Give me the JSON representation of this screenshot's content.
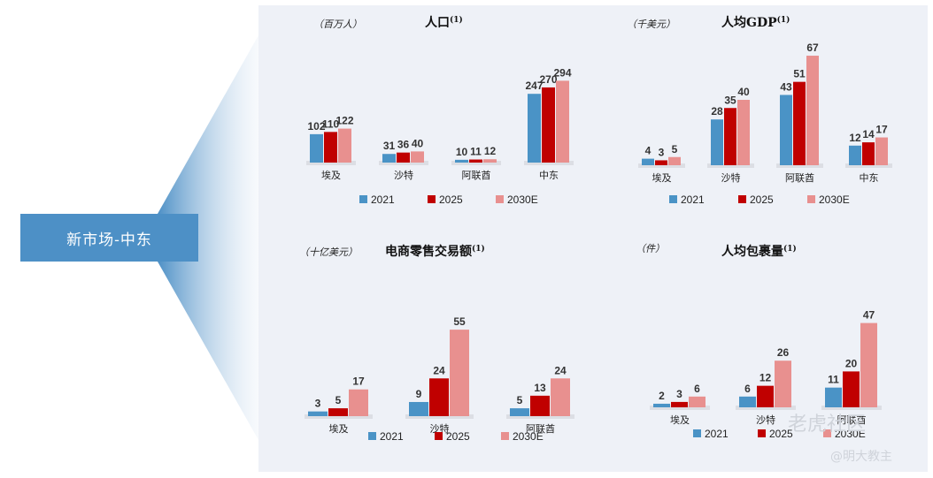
{
  "left_label": "新市场-中东",
  "colors": {
    "2021": "#4a93c6",
    "2025": "#c00000",
    "2030E": "#e8908f"
  },
  "legend": [
    "2021",
    "2025",
    "2030E"
  ],
  "watermark": {
    "brand": "老虎社区",
    "handle": "@明大教主"
  },
  "chart_data": [
    {
      "type": "bar",
      "title": "人口",
      "title_sup": "(1)",
      "unit": "（百万人）",
      "categories": [
        "埃及",
        "沙特",
        "阿联酋",
        "中东"
      ],
      "series": [
        {
          "name": "2021",
          "values": [
            102,
            31,
            10,
            247
          ]
        },
        {
          "name": "2025",
          "values": [
            110,
            36,
            11,
            270
          ]
        },
        {
          "name": "2030E",
          "values": [
            122,
            40,
            12,
            294
          ]
        }
      ]
    },
    {
      "type": "bar",
      "title": "人均GDP",
      "title_sup": "(1)",
      "unit": "（千美元）",
      "categories": [
        "埃及",
        "沙特",
        "阿联酋",
        "中东"
      ],
      "series": [
        {
          "name": "2021",
          "values": [
            4,
            28,
            43,
            12
          ]
        },
        {
          "name": "2025",
          "values": [
            3,
            35,
            51,
            14
          ]
        },
        {
          "name": "2030E",
          "values": [
            5,
            40,
            67,
            17
          ]
        }
      ]
    },
    {
      "type": "bar",
      "title": "电商零售交易额",
      "title_sup": "(1)",
      "unit": "（十亿美元）",
      "categories": [
        "埃及",
        "沙特",
        "阿联酋"
      ],
      "series": [
        {
          "name": "2021",
          "values": [
            3,
            9,
            5
          ]
        },
        {
          "name": "2025",
          "values": [
            5,
            24,
            13
          ]
        },
        {
          "name": "2030E",
          "values": [
            17,
            55,
            24
          ]
        }
      ]
    },
    {
      "type": "bar",
      "title": "人均包裹量",
      "title_sup": "(1)",
      "unit": "（件）",
      "categories": [
        "埃及",
        "沙特",
        "阿联酋"
      ],
      "series": [
        {
          "name": "2021",
          "values": [
            2,
            6,
            11
          ]
        },
        {
          "name": "2025",
          "values": [
            3,
            12,
            20
          ]
        },
        {
          "name": "2030E",
          "values": [
            6,
            26,
            47
          ]
        }
      ]
    }
  ]
}
